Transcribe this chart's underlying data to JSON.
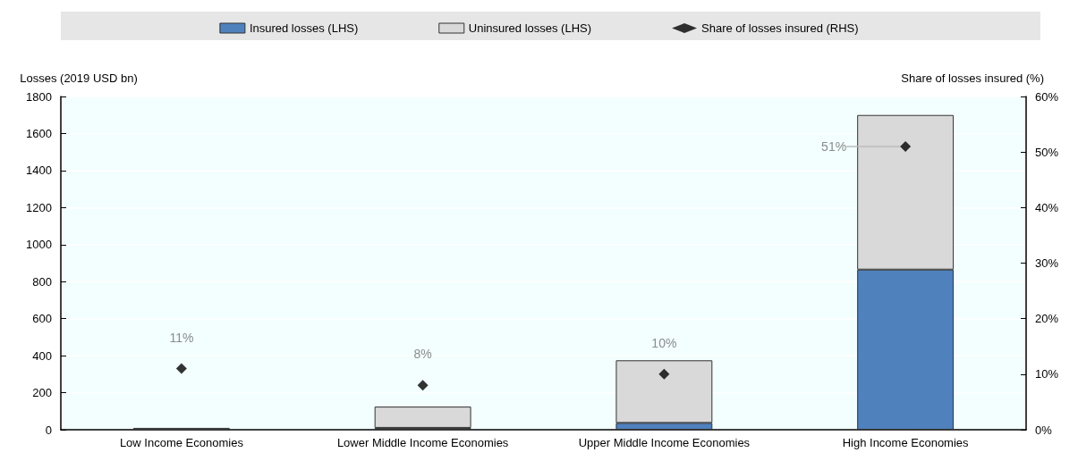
{
  "chart_data": {
    "type": "bar",
    "stacked": true,
    "categories": [
      "Low Income Economies",
      "Lower Middle Income Economies",
      "Upper Middle Income Economies",
      "High Income Economies"
    ],
    "series": [
      {
        "name": "Insured losses (LHS)",
        "color": "#4f81bd",
        "values": [
          1,
          10,
          37,
          865
        ]
      },
      {
        "name": "Uninsured losses (LHS)",
        "color": "#d9d9d9",
        "values": [
          9,
          115,
          338,
          835
        ]
      },
      {
        "name": "Share of losses insured (RHS)",
        "type": "scatter",
        "axis": "y2",
        "marker": "diamond",
        "color": "#000000",
        "values": [
          11,
          8,
          10,
          51
        ],
        "value_labels": [
          "11%",
          "8%",
          "10%",
          "51%"
        ]
      }
    ],
    "ylabel": "Losses (2019 USD bn)",
    "y2label": "Share of losses insured (%)",
    "ylim": [
      0,
      1800
    ],
    "yticks": [
      0,
      200,
      400,
      600,
      800,
      1000,
      1200,
      1400,
      1600,
      1800
    ],
    "y2lim": [
      0,
      60
    ],
    "y2ticks": [
      {
        "value": 0,
        "label": "0%"
      },
      {
        "value": 10,
        "label": "10%"
      },
      {
        "value": 20,
        "label": "20%"
      },
      {
        "value": 30,
        "label": "30%"
      },
      {
        "value": 40,
        "label": "40%"
      },
      {
        "value": 50,
        "label": "50%"
      },
      {
        "value": 60,
        "label": "60%"
      }
    ],
    "grid": "y",
    "legend": "top"
  }
}
